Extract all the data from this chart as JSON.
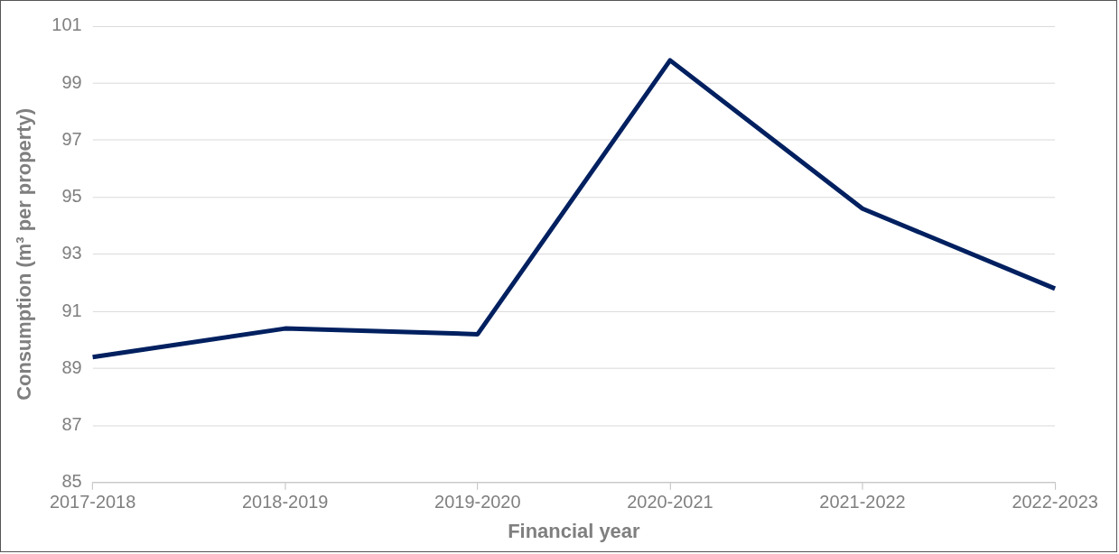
{
  "chart_data": {
    "type": "line",
    "xlabel": "Financial year",
    "ylabel": "Consumption (m³ per property)",
    "categories": [
      "2017-2018",
      "2018-2019",
      "2019-2020",
      "2020-2021",
      "2021-2022",
      "2022-2023"
    ],
    "series": [
      {
        "color": "#002060",
        "values": [
          89.4,
          90.4,
          90.2,
          99.8,
          94.6,
          91.8
        ]
      }
    ],
    "ylim": [
      85,
      101
    ],
    "yticks": [
      85,
      87,
      89,
      91,
      93,
      95,
      97,
      99,
      101
    ],
    "grid": "y",
    "legend": false,
    "marker": "none",
    "line_style": "solid"
  }
}
